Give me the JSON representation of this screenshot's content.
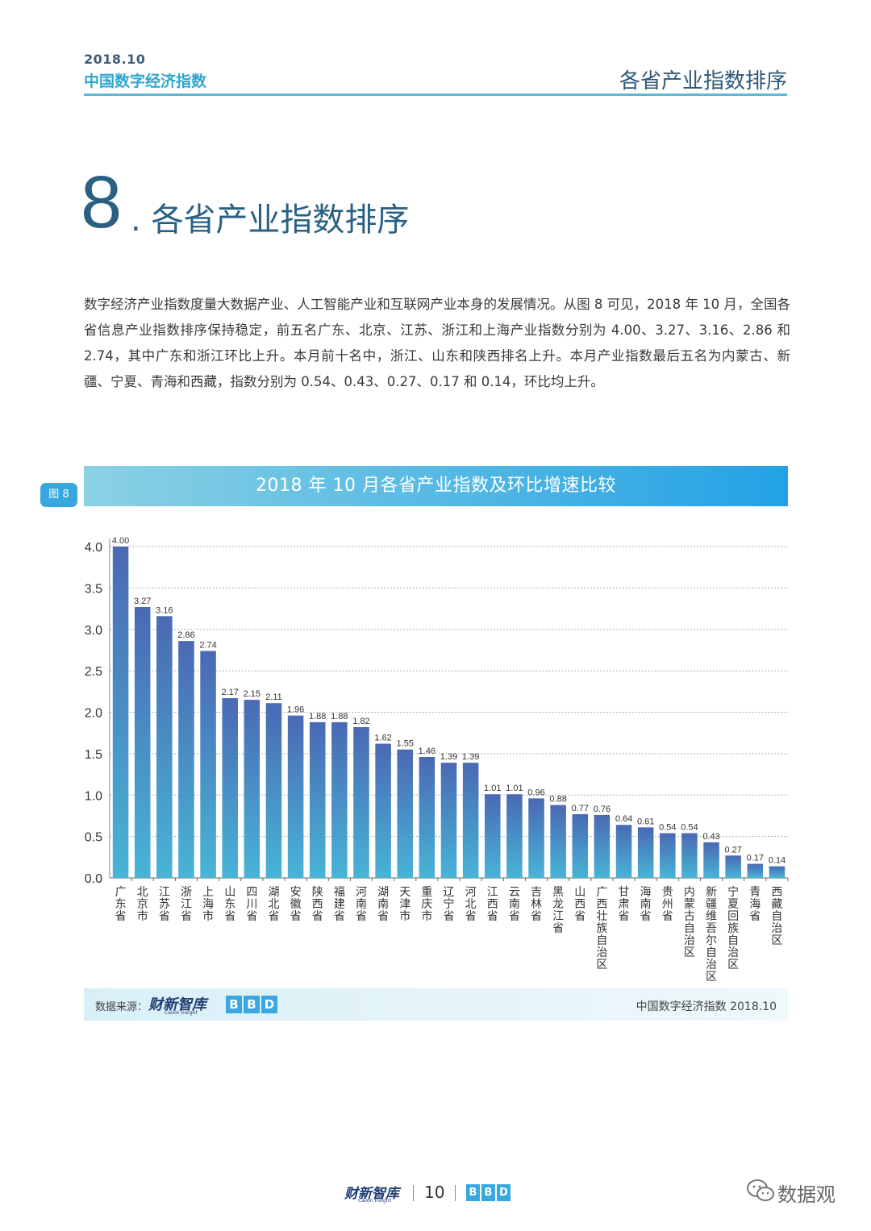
{
  "header": {
    "date": "2018.10",
    "report_title": "中国数字经济指数",
    "section_title": "各省产业指数排序"
  },
  "section": {
    "number": "8",
    "dot": ".",
    "title": "各省产业指数排序"
  },
  "intro": "数字经济产业指数度量大数据产业、人工智能产业和互联网产业本身的发展情况。从图 8 可见，2018 年 10 月，全国各省信息产业指数排序保持稳定，前五名广东、北京、江苏、浙江和上海产业指数分别为 4.00、3.27、3.16、2.86 和 2.74，其中广东和浙江环比上升。本月前十名中，浙江、山东和陕西排名上升。本月产业指数最后五名为内蒙古、新疆、宁夏、青海和西藏，指数分别为 0.54、0.43、0.27、0.17 和 0.14，环比均上升。",
  "figure": {
    "tag": "图 8",
    "title": "2018 年 10 月各省产业指数及环比增速比较"
  },
  "chart_data": {
    "type": "bar",
    "title": "2018 年 10 月各省产业指数及环比增速比较",
    "categories": [
      "广东省",
      "北京市",
      "江苏省",
      "浙江省",
      "上海市",
      "山东省",
      "四川省",
      "湖北省",
      "安徽省",
      "陕西省",
      "福建省",
      "河南省",
      "湖南省",
      "天津市",
      "重庆市",
      "辽宁省",
      "河北省",
      "江西省",
      "云南省",
      "吉林省",
      "黑龙江省",
      "山西省",
      "广西壮族自治区",
      "甘肃省",
      "海南省",
      "贵州省",
      "内蒙古自治区",
      "新疆维吾尔自治区",
      "宁夏回族自治区",
      "青海省",
      "西藏自治区"
    ],
    "values": [
      4.0,
      3.27,
      3.16,
      2.86,
      2.74,
      2.17,
      2.15,
      2.11,
      1.96,
      1.88,
      1.88,
      1.82,
      1.62,
      1.55,
      1.46,
      1.39,
      1.39,
      1.01,
      1.01,
      0.96,
      0.88,
      0.77,
      0.76,
      0.64,
      0.61,
      0.54,
      0.54,
      0.43,
      0.27,
      0.17,
      0.14
    ],
    "value_labels": [
      "4.00",
      "3.27",
      "3.16",
      "2.86",
      "2.74",
      "2.17",
      "2.15",
      "2.11",
      "1.96",
      "1.88",
      "1.88",
      "1.82",
      "1.62",
      "1.55",
      "1.46",
      "1.39",
      "1.39",
      "1.01",
      "1.01",
      "0.96",
      "0.88",
      "0.77",
      "0.76",
      "0.64",
      "0.61",
      "0.54",
      "0.54",
      "0.43",
      "0.27",
      "0.17",
      "0.14"
    ],
    "yticks": [
      "0.0",
      "0.5",
      "1.0",
      "1.5",
      "2.0",
      "2.5",
      "3.0",
      "3.5",
      "4.0"
    ],
    "ylim": [
      0,
      4
    ],
    "grid": true,
    "bar_color_top": "#4a69b4",
    "bar_color_bottom": "#48b4d6"
  },
  "source": {
    "label": "数据来源：",
    "logo1": "财新智库",
    "logo1_sub": "Caixin Insight",
    "logo2": [
      "B",
      "B",
      "D"
    ],
    "right": "中国数字经济指数 2018.10"
  },
  "footer": {
    "logo1": "财新智库",
    "logo1_sub": "Caixin Insight",
    "page": "10",
    "logo2": [
      "B",
      "B",
      "D"
    ]
  },
  "watermark": {
    "icon": "wechat-icon",
    "text": "数据观"
  }
}
